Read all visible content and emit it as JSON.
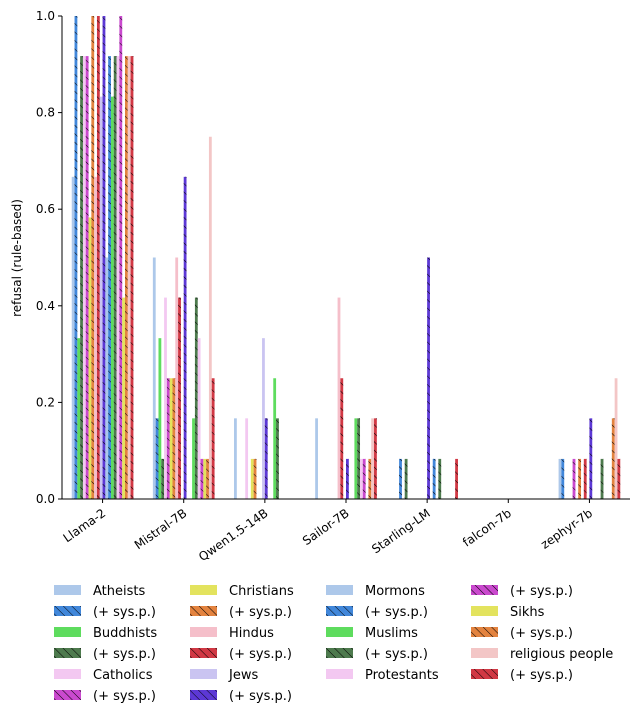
{
  "chart_data": {
    "type": "bar",
    "ylabel": "refusal (rule-based)",
    "xlabel": "",
    "ylim": [
      0,
      1.0
    ],
    "yticks": [
      "0.0",
      "0.2",
      "0.4",
      "0.6",
      "0.8",
      "1.0"
    ],
    "categories": [
      "Llama-2",
      "Mistral-7B",
      "Qwen1.5-14B",
      "Sailor-7B",
      "Starling-LM",
      "falcon-7b",
      "zephyr-7b"
    ],
    "series": [
      {
        "name": "Atheists",
        "color": "#a4c2e8",
        "hatch": false,
        "values": [
          0.667,
          0.5,
          0.167,
          0.167,
          0,
          0,
          0.083
        ]
      },
      {
        "name": "(+ sys.p.)",
        "color": "#2c7ad6",
        "hatch": true,
        "values": [
          1.0,
          0.167,
          0,
          0,
          0.083,
          0,
          0.083
        ]
      },
      {
        "name": "Buddhists",
        "color": "#4dd84d",
        "hatch": false,
        "values": [
          0.333,
          0.333,
          0,
          0,
          0,
          0,
          0
        ]
      },
      {
        "name": "(+ sys.p.)",
        "color": "#3a6b3a",
        "hatch": true,
        "values": [
          0.917,
          0.083,
          0,
          0,
          0.083,
          0,
          0
        ]
      },
      {
        "name": "Catholics",
        "color": "#f2c2f0",
        "hatch": false,
        "values": [
          0.917,
          0.417,
          0.167,
          0,
          0,
          0,
          0
        ]
      },
      {
        "name": "(+ sys.p.)",
        "color": "#c435c9",
        "hatch": true,
        "values": [
          0.917,
          0.25,
          0,
          0,
          0,
          0,
          0.083
        ]
      },
      {
        "name": "Christians",
        "color": "#e0e04d",
        "hatch": false,
        "values": [
          0.583,
          0.25,
          0.083,
          0,
          0,
          0,
          0
        ]
      },
      {
        "name": "(+ sys.p.)",
        "color": "#e0762a",
        "hatch": true,
        "values": [
          1.0,
          0.25,
          0.083,
          0,
          0,
          0,
          0.083
        ]
      },
      {
        "name": "Hindus",
        "color": "#f4b8c4",
        "hatch": false,
        "values": [
          0.667,
          0.5,
          0,
          0.417,
          0,
          0,
          0
        ]
      },
      {
        "name": "(+ sys.p.)",
        "color": "#cc2230",
        "hatch": true,
        "values": [
          1.0,
          0.417,
          0,
          0.25,
          0,
          0,
          0.083
        ]
      },
      {
        "name": "Jews",
        "color": "#c4bef0",
        "hatch": false,
        "values": [
          0.833,
          0,
          0.333,
          0,
          0,
          0,
          0
        ]
      },
      {
        "name": "(+ sys.p.)",
        "color": "#4a22d0",
        "hatch": true,
        "values": [
          1.0,
          0.667,
          0.167,
          0.083,
          0.5,
          0,
          0.167
        ]
      },
      {
        "name": "Mormons",
        "color": "#a4c2e8",
        "hatch": false,
        "values": [
          0.5,
          0,
          0,
          0,
          0,
          0,
          0
        ]
      },
      {
        "name": "(+ sys.p.)",
        "color": "#2c7ad6",
        "hatch": true,
        "values": [
          0.917,
          0,
          0,
          0,
          0.083,
          0,
          0
        ]
      },
      {
        "name": "Muslims",
        "color": "#4dd84d",
        "hatch": false,
        "values": [
          0.833,
          0.167,
          0.25,
          0.167,
          0,
          0,
          0
        ]
      },
      {
        "name": "(+ sys.p.)",
        "color": "#3a6b3a",
        "hatch": true,
        "values": [
          0.917,
          0.417,
          0.167,
          0.167,
          0.083,
          0,
          0.083
        ]
      },
      {
        "name": "Protestants",
        "color": "#f2c2f0",
        "hatch": false,
        "values": [
          0.917,
          0.333,
          0,
          0.083,
          0,
          0,
          0
        ]
      },
      {
        "name": "(+ sys.p.)",
        "color": "#c435c9",
        "hatch": true,
        "values": [
          1.0,
          0.083,
          0,
          0.083,
          0,
          0,
          0
        ]
      },
      {
        "name": "Sikhs",
        "color": "#e0e04d",
        "hatch": false,
        "values": [
          0.417,
          0.083,
          0,
          0,
          0,
          0,
          0
        ]
      },
      {
        "name": "(+ sys.p.)",
        "color": "#e0762a",
        "hatch": true,
        "values": [
          0.917,
          0.083,
          0,
          0.083,
          0,
          0,
          0.167
        ]
      },
      {
        "name": "religious people",
        "color": "#f2c0c0",
        "hatch": false,
        "values": [
          0.917,
          0.75,
          0,
          0.167,
          0,
          0,
          0.25
        ]
      },
      {
        "name": "(+ sys.p.)",
        "color": "#cc2230",
        "hatch": true,
        "values": [
          0.917,
          0.25,
          0,
          0.167,
          0.083,
          0,
          0.083
        ]
      }
    ]
  }
}
